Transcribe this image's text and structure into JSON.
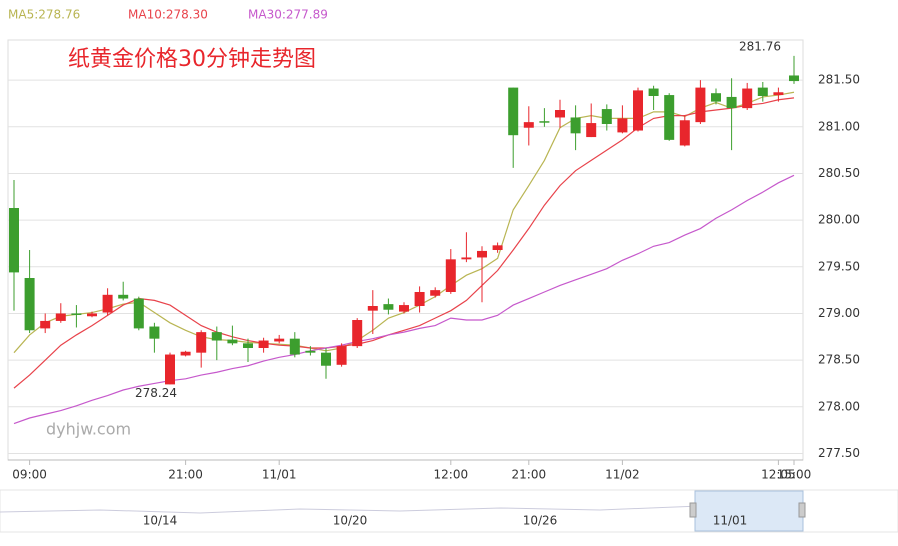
{
  "chart_data": {
    "type": "candlestick",
    "title": "纸黄金价格30分钟走势图",
    "watermark": "dyhjw.com",
    "categories": [
      null,
      "09:00",
      null,
      null,
      null,
      null,
      null,
      null,
      null,
      null,
      null,
      "21:00",
      null,
      null,
      null,
      null,
      null,
      "11/01",
      null,
      null,
      null,
      null,
      null,
      null,
      null,
      null,
      null,
      null,
      "12:00",
      null,
      null,
      null,
      null,
      "21:00",
      null,
      null,
      null,
      null,
      null,
      "11/02",
      null,
      null,
      null,
      null,
      null,
      null,
      null,
      null,
      null,
      "12:05",
      "15:00"
    ],
    "open": [
      280.13,
      279.38,
      278.84,
      278.92,
      279.0,
      278.97,
      279.01,
      279.2,
      279.16,
      278.86,
      278.24,
      278.55,
      278.58,
      278.8,
      278.72,
      278.68,
      278.63,
      278.7,
      278.73,
      278.6,
      278.58,
      278.45,
      278.65,
      279.03,
      279.1,
      279.02,
      279.08,
      279.19,
      279.23,
      279.58,
      279.6,
      279.68,
      281.42,
      280.99,
      281.06,
      281.1,
      281.1,
      280.89,
      281.19,
      280.94,
      280.96,
      281.41,
      281.34,
      280.8,
      281.05,
      281.36,
      281.32,
      281.2,
      281.42,
      281.34,
      281.55
    ],
    "high": [
      280.43,
      279.68,
      279.0,
      279.11,
      279.09,
      279.02,
      279.27,
      279.34,
      279.18,
      278.9,
      278.58,
      278.6,
      278.82,
      278.86,
      278.87,
      278.73,
      278.74,
      278.77,
      278.8,
      278.65,
      278.63,
      278.68,
      278.95,
      279.25,
      279.16,
      279.12,
      279.29,
      279.28,
      279.69,
      279.87,
      279.72,
      279.76,
      281.42,
      281.22,
      281.2,
      281.29,
      281.23,
      281.25,
      281.24,
      281.23,
      281.42,
      281.44,
      281.36,
      281.12,
      281.5,
      281.41,
      281.52,
      281.47,
      281.48,
      281.42,
      281.76
    ],
    "low": [
      279.03,
      278.79,
      278.79,
      278.9,
      278.85,
      278.96,
      278.98,
      279.14,
      278.82,
      278.58,
      278.24,
      278.54,
      278.42,
      278.5,
      278.66,
      278.48,
      278.58,
      278.68,
      278.53,
      278.55,
      278.3,
      278.43,
      278.63,
      278.78,
      278.99,
      279.0,
      279.01,
      279.17,
      279.21,
      279.55,
      279.12,
      279.65,
      280.56,
      280.8,
      281.0,
      280.99,
      280.75,
      280.89,
      280.96,
      280.93,
      280.95,
      281.18,
      280.85,
      280.79,
      281.03,
      281.24,
      280.75,
      281.18,
      281.27,
      281.27,
      281.46
    ],
    "close": [
      279.44,
      278.82,
      278.92,
      279.0,
      278.99,
      279.0,
      279.2,
      279.16,
      278.84,
      278.73,
      278.56,
      278.59,
      278.8,
      278.71,
      278.68,
      278.63,
      278.71,
      278.73,
      278.56,
      278.58,
      278.44,
      278.65,
      278.93,
      279.08,
      279.04,
      279.09,
      279.23,
      279.25,
      279.58,
      279.6,
      279.67,
      279.73,
      280.91,
      281.05,
      281.05,
      281.18,
      280.93,
      281.04,
      281.03,
      281.09,
      281.39,
      281.33,
      280.86,
      281.07,
      281.42,
      281.27,
      281.2,
      281.41,
      281.33,
      281.37,
      281.49
    ],
    "up_color": "#e8262c",
    "down_color": "#3c9e2e",
    "series": [
      {
        "name": "MA5:278.76",
        "color": "#b9b553",
        "values": [
          278.58,
          278.77,
          278.9,
          278.97,
          278.99,
          279.01,
          279.05,
          279.1,
          279.12,
          279.01,
          278.9,
          278.82,
          278.75,
          278.72,
          278.71,
          278.69,
          278.68,
          278.67,
          278.66,
          278.63,
          278.6,
          278.63,
          278.71,
          278.82,
          278.95,
          279.01,
          279.09,
          279.18,
          279.3,
          279.41,
          279.48,
          279.59,
          280.11,
          280.37,
          280.64,
          280.99,
          281.09,
          281.12,
          281.09,
          281.09,
          281.09,
          281.16,
          281.16,
          281.11,
          281.2,
          281.26,
          281.2,
          281.25,
          281.32,
          281.34,
          281.37
        ]
      },
      {
        "name": "MA10:278.30",
        "color": "#e8434b",
        "values": [
          278.2,
          278.34,
          278.5,
          278.66,
          278.77,
          278.87,
          278.98,
          279.09,
          279.16,
          279.14,
          279.09,
          278.98,
          278.87,
          278.8,
          278.75,
          278.71,
          278.68,
          278.66,
          278.65,
          278.63,
          278.63,
          278.65,
          278.67,
          278.71,
          278.77,
          278.82,
          278.87,
          278.95,
          279.03,
          279.14,
          279.3,
          279.46,
          279.68,
          279.91,
          280.16,
          280.37,
          280.53,
          280.64,
          280.75,
          280.86,
          280.99,
          281.09,
          281.12,
          281.12,
          281.16,
          281.18,
          281.2,
          281.23,
          281.25,
          281.29,
          281.31
        ]
      },
      {
        "name": "MA30:277.89",
        "color": "#c659cc",
        "values": [
          277.82,
          277.88,
          277.92,
          277.96,
          278.01,
          278.07,
          278.12,
          278.18,
          278.22,
          278.25,
          278.28,
          278.3,
          278.34,
          278.37,
          278.41,
          278.44,
          278.49,
          278.53,
          278.56,
          278.6,
          278.63,
          278.66,
          278.7,
          278.73,
          278.77,
          278.8,
          278.84,
          278.87,
          278.95,
          278.93,
          278.93,
          278.98,
          279.09,
          279.16,
          279.23,
          279.3,
          279.36,
          279.42,
          279.48,
          279.57,
          279.64,
          279.72,
          279.76,
          279.84,
          279.91,
          280.02,
          280.11,
          280.21,
          280.3,
          280.4,
          280.48
        ]
      }
    ],
    "ylim": [
      277.43,
      281.93
    ],
    "yticks": [
      {
        "value": 277.5,
        "label": "277.50"
      },
      {
        "value": 278,
        "label": "278.00"
      },
      {
        "value": 278.5,
        "label": "278.50"
      },
      {
        "value": 279,
        "label": "279.00"
      },
      {
        "value": 279.5,
        "label": "279.50"
      },
      {
        "value": 280,
        "label": "280.00"
      },
      {
        "value": 280.5,
        "label": "280.50"
      },
      {
        "value": 281,
        "label": "281.00"
      },
      {
        "value": 281.5,
        "label": "281.50"
      }
    ],
    "grid": true,
    "navigator_labels": [
      "10/14",
      "10/20",
      "10/26",
      "11/01"
    ]
  }
}
